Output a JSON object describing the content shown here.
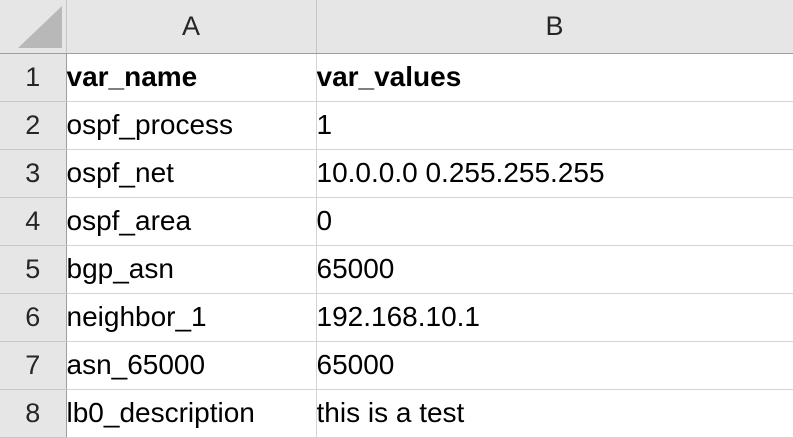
{
  "columns": [
    "A",
    "B"
  ],
  "header_row": {
    "number": "1",
    "cells": [
      "var_name",
      "var_values"
    ]
  },
  "rows": [
    {
      "number": "2",
      "name": "ospf_process",
      "value": "1"
    },
    {
      "number": "3",
      "name": "ospf_net",
      "value": "10.0.0.0 0.255.255.255"
    },
    {
      "number": "4",
      "name": "ospf_area",
      "value": "0"
    },
    {
      "number": "5",
      "name": "bgp_asn",
      "value": "65000"
    },
    {
      "number": "6",
      "name": "neighbor_1",
      "value": "192.168.10.1"
    },
    {
      "number": "7",
      "name": "asn_65000",
      "value": "65000"
    },
    {
      "number": "8",
      "name": "lb0_description",
      "value": "this is a test"
    }
  ],
  "icons": {
    "select_all": "select-all-corner-icon"
  },
  "colors": {
    "header_bg": "#e6e6e6",
    "gridline": "#d4d4d4",
    "corner_triangle": "#b8b8b8"
  }
}
